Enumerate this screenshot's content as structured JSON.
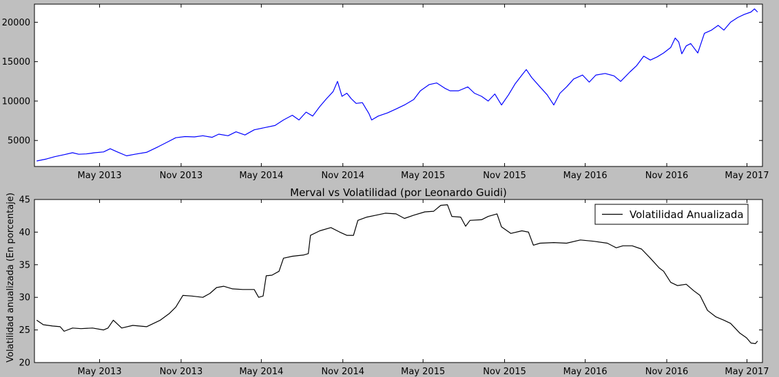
{
  "chart_data": [
    {
      "type": "line",
      "title": "",
      "xlabel": "",
      "ylabel": "",
      "x_tick_labels": [
        "May 2013",
        "Nov 2013",
        "May 2014",
        "Nov 2014",
        "May 2015",
        "Nov 2015",
        "May 2016",
        "Nov 2016",
        "May 2017"
      ],
      "y_tick_labels": [
        "5000",
        "10000",
        "15000",
        "20000"
      ],
      "yticks": [
        5000,
        10000,
        15000,
        20000
      ],
      "ylim": [
        1700,
        22300
      ],
      "grid": false,
      "color": "#0000ff",
      "series": [
        {
          "points": [
            [
              "2012-12-10",
              2400
            ],
            [
              "2013-01-01",
              2650
            ],
            [
              "2013-01-20",
              2950
            ],
            [
              "2013-02-10",
              3200
            ],
            [
              "2013-03-01",
              3450
            ],
            [
              "2013-03-15",
              3250
            ],
            [
              "2013-04-01",
              3300
            ],
            [
              "2013-04-20",
              3450
            ],
            [
              "2013-05-10",
              3550
            ],
            [
              "2013-05-25",
              3950
            ],
            [
              "2013-06-10",
              3550
            ],
            [
              "2013-07-01",
              3050
            ],
            [
              "2013-07-20",
              3250
            ],
            [
              "2013-08-15",
              3500
            ],
            [
              "2013-09-10",
              4200
            ],
            [
              "2013-10-01",
              4800
            ],
            [
              "2013-10-20",
              5350
            ],
            [
              "2013-11-10",
              5500
            ],
            [
              "2013-12-01",
              5450
            ],
            [
              "2013-12-20",
              5600
            ],
            [
              "2014-01-10",
              5400
            ],
            [
              "2014-01-25",
              5800
            ],
            [
              "2014-02-15",
              5600
            ],
            [
              "2014-03-05",
              6100
            ],
            [
              "2014-03-25",
              5700
            ],
            [
              "2014-04-15",
              6350
            ],
            [
              "2014-05-10",
              6650
            ],
            [
              "2014-06-01",
              6900
            ],
            [
              "2014-06-20",
              7600
            ],
            [
              "2014-07-10",
              8200
            ],
            [
              "2014-07-25",
              7600
            ],
            [
              "2014-08-10",
              8600
            ],
            [
              "2014-08-25",
              8100
            ],
            [
              "2014-09-10",
              9300
            ],
            [
              "2014-09-25",
              10300
            ],
            [
              "2014-10-10",
              11200
            ],
            [
              "2014-10-20",
              12500
            ],
            [
              "2014-10-30",
              10600
            ],
            [
              "2014-11-10",
              11000
            ],
            [
              "2014-11-20",
              10300
            ],
            [
              "2014-12-01",
              9700
            ],
            [
              "2014-12-15",
              9800
            ],
            [
              "2014-12-30",
              8400
            ],
            [
              "2015-01-05",
              7600
            ],
            [
              "2015-01-20",
              8100
            ],
            [
              "2015-02-10",
              8500
            ],
            [
              "2015-03-01",
              9000
            ],
            [
              "2015-03-20",
              9500
            ],
            [
              "2015-04-10",
              10200
            ],
            [
              "2015-04-25",
              11300
            ],
            [
              "2015-05-15",
              12100
            ],
            [
              "2015-06-01",
              12300
            ],
            [
              "2015-06-20",
              11600
            ],
            [
              "2015-07-01",
              11300
            ],
            [
              "2015-07-20",
              11300
            ],
            [
              "2015-08-10",
              11800
            ],
            [
              "2015-08-25",
              11000
            ],
            [
              "2015-09-10",
              10600
            ],
            [
              "2015-09-25",
              10000
            ],
            [
              "2015-10-10",
              10900
            ],
            [
              "2015-10-25",
              9500
            ],
            [
              "2015-11-10",
              10800
            ],
            [
              "2015-11-25",
              12200
            ],
            [
              "2015-12-10",
              13300
            ],
            [
              "2015-12-20",
              14000
            ],
            [
              "2016-01-01",
              13000
            ],
            [
              "2016-01-20",
              11800
            ],
            [
              "2016-02-05",
              10800
            ],
            [
              "2016-02-20",
              9500
            ],
            [
              "2016-03-05",
              11000
            ],
            [
              "2016-03-20",
              11800
            ],
            [
              "2016-04-05",
              12800
            ],
            [
              "2016-04-25",
              13300
            ],
            [
              "2016-05-10",
              12400
            ],
            [
              "2016-05-25",
              13300
            ],
            [
              "2016-06-15",
              13500
            ],
            [
              "2016-07-05",
              13200
            ],
            [
              "2016-07-20",
              12500
            ],
            [
              "2016-08-10",
              13700
            ],
            [
              "2016-08-25",
              14500
            ],
            [
              "2016-09-10",
              15700
            ],
            [
              "2016-09-25",
              15200
            ],
            [
              "2016-10-10",
              15600
            ],
            [
              "2016-10-25",
              16100
            ],
            [
              "2016-11-10",
              16800
            ],
            [
              "2016-11-20",
              18000
            ],
            [
              "2016-11-28",
              17500
            ],
            [
              "2016-12-05",
              16000
            ],
            [
              "2016-12-15",
              17000
            ],
            [
              "2016-12-25",
              17300
            ],
            [
              "2017-01-10",
              16100
            ],
            [
              "2017-01-25",
              18600
            ],
            [
              "2017-02-10",
              19000
            ],
            [
              "2017-02-25",
              19600
            ],
            [
              "2017-03-10",
              19000
            ],
            [
              "2017-03-25",
              20000
            ],
            [
              "2017-04-10",
              20600
            ],
            [
              "2017-04-25",
              21000
            ],
            [
              "2017-05-10",
              21300
            ],
            [
              "2017-05-18",
              21700
            ],
            [
              "2017-05-25",
              21300
            ]
          ]
        }
      ]
    },
    {
      "type": "line",
      "title": "Merval vs Volatilidad (por Leonardo Guidi)",
      "xlabel": "",
      "ylabel": "Volatilidad anualizada (En porcentaje)",
      "x_tick_labels": [
        "May 2013",
        "Nov 2013",
        "May 2014",
        "Nov 2014",
        "May 2015",
        "Nov 2015",
        "May 2016",
        "Nov 2016",
        "May 2017"
      ],
      "y_tick_labels": [
        "20",
        "25",
        "30",
        "35",
        "40",
        "45"
      ],
      "yticks": [
        20,
        25,
        30,
        35,
        40,
        45
      ],
      "ylim": [
        20,
        45
      ],
      "grid": false,
      "legend_position": "top-right",
      "color": "#000000",
      "series": [
        {
          "name": "Volatilidad Anualizada",
          "points": [
            [
              "2012-12-10",
              26.5
            ],
            [
              "2012-12-25",
              25.8
            ],
            [
              "2013-01-15",
              25.6
            ],
            [
              "2013-02-01",
              25.5
            ],
            [
              "2013-02-10",
              24.8
            ],
            [
              "2013-03-01",
              25.3
            ],
            [
              "2013-03-20",
              25.2
            ],
            [
              "2013-04-15",
              25.3
            ],
            [
              "2013-05-10",
              25.0
            ],
            [
              "2013-05-20",
              25.3
            ],
            [
              "2013-06-01",
              26.5
            ],
            [
              "2013-06-20",
              25.3
            ],
            [
              "2013-07-15",
              25.7
            ],
            [
              "2013-08-15",
              25.5
            ],
            [
              "2013-09-15",
              26.5
            ],
            [
              "2013-10-05",
              27.5
            ],
            [
              "2013-10-20",
              28.5
            ],
            [
              "2013-11-05",
              30.3
            ],
            [
              "2013-11-25",
              30.2
            ],
            [
              "2013-12-20",
              30.0
            ],
            [
              "2014-01-05",
              30.6
            ],
            [
              "2014-01-20",
              31.5
            ],
            [
              "2014-02-05",
              31.7
            ],
            [
              "2014-02-25",
              31.3
            ],
            [
              "2014-03-20",
              31.2
            ],
            [
              "2014-04-15",
              31.2
            ],
            [
              "2014-04-25",
              30.0
            ],
            [
              "2014-05-05",
              30.2
            ],
            [
              "2014-05-12",
              33.3
            ],
            [
              "2014-05-25",
              33.4
            ],
            [
              "2014-06-10",
              34.0
            ],
            [
              "2014-06-20",
              36.0
            ],
            [
              "2014-07-10",
              36.3
            ],
            [
              "2014-08-05",
              36.5
            ],
            [
              "2014-08-15",
              36.7
            ],
            [
              "2014-08-20",
              39.5
            ],
            [
              "2014-09-10",
              40.2
            ],
            [
              "2014-10-05",
              40.7
            ],
            [
              "2014-10-25",
              40.0
            ],
            [
              "2014-11-10",
              39.5
            ],
            [
              "2014-11-25",
              39.5
            ],
            [
              "2014-12-05",
              41.8
            ],
            [
              "2014-12-25",
              42.3
            ],
            [
              "2015-01-15",
              42.6
            ],
            [
              "2015-02-05",
              42.9
            ],
            [
              "2015-03-01",
              42.8
            ],
            [
              "2015-03-20",
              42.1
            ],
            [
              "2015-04-10",
              42.6
            ],
            [
              "2015-05-05",
              43.1
            ],
            [
              "2015-05-25",
              43.2
            ],
            [
              "2015-06-10",
              44.1
            ],
            [
              "2015-06-25",
              44.2
            ],
            [
              "2015-07-05",
              42.4
            ],
            [
              "2015-07-25",
              42.3
            ],
            [
              "2015-08-05",
              40.9
            ],
            [
              "2015-08-15",
              41.8
            ],
            [
              "2015-09-10",
              41.9
            ],
            [
              "2015-09-25",
              42.4
            ],
            [
              "2015-10-15",
              42.8
            ],
            [
              "2015-10-25",
              40.8
            ],
            [
              "2015-11-15",
              39.8
            ],
            [
              "2015-12-10",
              40.2
            ],
            [
              "2015-12-25",
              40.0
            ],
            [
              "2016-01-05",
              38.0
            ],
            [
              "2016-01-20",
              38.3
            ],
            [
              "2016-02-20",
              38.4
            ],
            [
              "2016-03-20",
              38.3
            ],
            [
              "2016-04-20",
              38.8
            ],
            [
              "2016-05-20",
              38.6
            ],
            [
              "2016-06-20",
              38.3
            ],
            [
              "2016-07-10",
              37.6
            ],
            [
              "2016-07-25",
              37.9
            ],
            [
              "2016-08-15",
              37.9
            ],
            [
              "2016-09-05",
              37.4
            ],
            [
              "2016-09-25",
              36.0
            ],
            [
              "2016-10-15",
              34.5
            ],
            [
              "2016-10-25",
              34.0
            ],
            [
              "2016-11-10",
              32.3
            ],
            [
              "2016-11-25",
              31.8
            ],
            [
              "2016-12-15",
              32.0
            ],
            [
              "2017-01-01",
              31.0
            ],
            [
              "2017-01-15",
              30.3
            ],
            [
              "2017-02-01",
              28.0
            ],
            [
              "2017-02-20",
              27.0
            ],
            [
              "2017-03-10",
              26.5
            ],
            [
              "2017-03-25",
              26.0
            ],
            [
              "2017-04-15",
              24.5
            ],
            [
              "2017-04-30",
              23.8
            ],
            [
              "2017-05-10",
              23.0
            ],
            [
              "2017-05-20",
              22.9
            ],
            [
              "2017-05-25",
              23.3
            ]
          ]
        }
      ]
    }
  ]
}
